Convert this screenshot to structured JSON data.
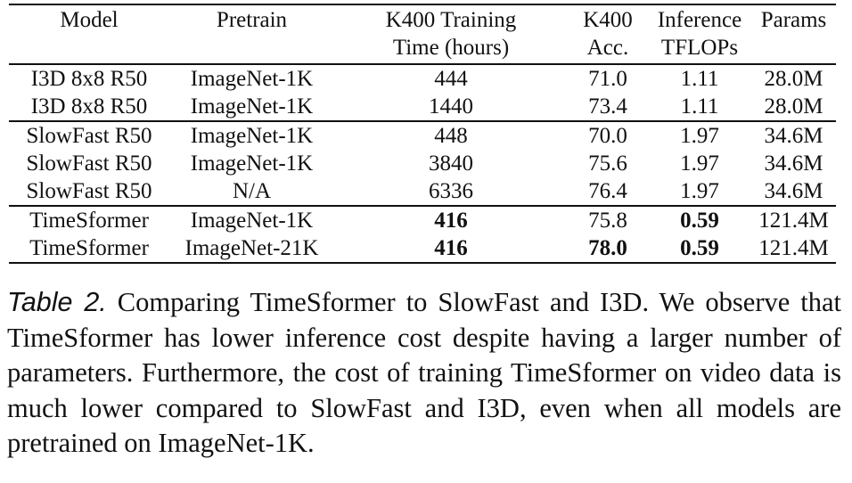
{
  "table": {
    "headers": [
      [
        "Model"
      ],
      [
        "Pretrain"
      ],
      [
        "K400 Training",
        "Time (hours)"
      ],
      [
        "K400",
        "Acc."
      ],
      [
        "Inference",
        "TFLOPs"
      ],
      [
        "Params"
      ]
    ],
    "groups": [
      [
        {
          "cells": [
            "I3D 8x8 R50",
            "ImageNet-1K",
            "444",
            "71.0",
            "1.11",
            "28.0M"
          ],
          "bold": []
        },
        {
          "cells": [
            "I3D 8x8 R50",
            "ImageNet-1K",
            "1440",
            "73.4",
            "1.11",
            "28.0M"
          ],
          "bold": []
        }
      ],
      [
        {
          "cells": [
            "SlowFast R50",
            "ImageNet-1K",
            "448",
            "70.0",
            "1.97",
            "34.6M"
          ],
          "bold": []
        },
        {
          "cells": [
            "SlowFast R50",
            "ImageNet-1K",
            "3840",
            "75.6",
            "1.97",
            "34.6M"
          ],
          "bold": []
        },
        {
          "cells": [
            "SlowFast R50",
            "N/A",
            "6336",
            "76.4",
            "1.97",
            "34.6M"
          ],
          "bold": []
        }
      ],
      [
        {
          "cells": [
            "TimeSformer",
            "ImageNet-1K",
            "416",
            "75.8",
            "0.59",
            "121.4M"
          ],
          "bold": [
            2,
            4
          ]
        },
        {
          "cells": [
            "TimeSformer",
            "ImageNet-21K",
            "416",
            "78.0",
            "0.59",
            "121.4M"
          ],
          "bold": [
            2,
            3,
            4
          ]
        }
      ]
    ]
  },
  "caption": {
    "label": "Table 2.",
    "text": " Comparing TimeSformer to SlowFast and I3D. We observe that TimeSformer has lower inference cost despite having a larger number of parameters. Furthermore, the cost of training TimeSformer on video data is much lower compared to SlowFast and I3D, even when all models are pretrained on ImageNet-1K."
  }
}
